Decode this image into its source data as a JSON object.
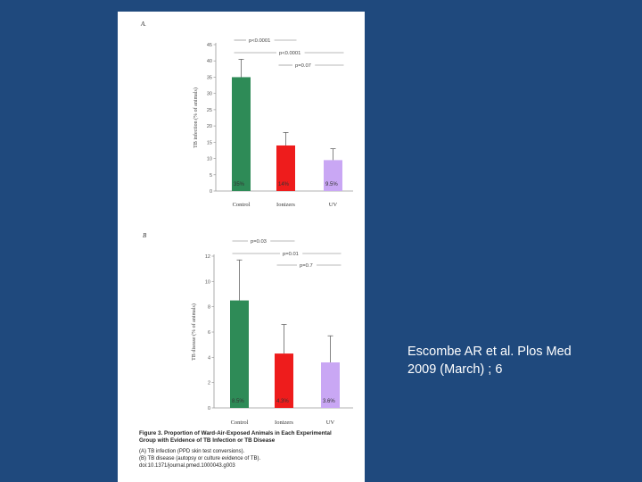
{
  "citation": {
    "line1": "Escombe AR et al. Plos Med",
    "line2": "2009 (March) ; 6"
  },
  "figure": {
    "caption_title": "Figure 3. Proportion of Ward-Air-Exposed Animals in Each Experimental",
    "caption_title2": "Group with Evidence of TB Infection or TB Disease",
    "caption_a": "(A) TB infection (PPD skin test conversions).",
    "caption_b": "(B) TB disease (autopsy or culture evidence of TB).",
    "doi": "doi:10.1371/journal.pmed.1000043.g003"
  },
  "colors": {
    "control": "#2e8b57",
    "ionizers": "#ee1c1c",
    "uv": "#c9a7f4",
    "background": "#1f497d"
  },
  "chart_data": [
    {
      "panel": "A.",
      "type": "bar",
      "categories": [
        "Control",
        "Ionizers",
        "UV"
      ],
      "values": [
        35,
        14,
        9.5
      ],
      "error_upper": [
        5.5,
        4,
        3.5
      ],
      "data_labels": [
        "35%",
        "14%",
        "9.5%"
      ],
      "ylabel": "TB infection (% of animals)",
      "ylim": [
        0,
        45
      ],
      "yticks": [
        0,
        5,
        10,
        15,
        20,
        25,
        30,
        35,
        40,
        45
      ],
      "annotations": [
        {
          "text": "p<0.0001",
          "from": 0,
          "to": 1
        },
        {
          "text": "p<0.0001",
          "from": 0,
          "to": 2
        },
        {
          "text": "p=0.07",
          "from": 1,
          "to": 2
        }
      ],
      "grid": false
    },
    {
      "panel": "B",
      "type": "bar",
      "categories": [
        "Control",
        "Ionizers",
        "UV"
      ],
      "values": [
        8.5,
        4.3,
        3.6
      ],
      "error_upper": [
        3.2,
        2.3,
        2.1
      ],
      "data_labels": [
        "8.5%",
        "4.3%",
        "3.6%"
      ],
      "ylabel": "TB disease (% of animals)",
      "ylim": [
        0,
        12
      ],
      "yticks": [
        0,
        2,
        4,
        6,
        8,
        10,
        12
      ],
      "annotations": [
        {
          "text": "p=0.03",
          "from": 0,
          "to": 1
        },
        {
          "text": "p=0.01",
          "from": 0,
          "to": 2
        },
        {
          "text": "p=0.7",
          "from": 1,
          "to": 2
        }
      ],
      "grid": false
    }
  ]
}
